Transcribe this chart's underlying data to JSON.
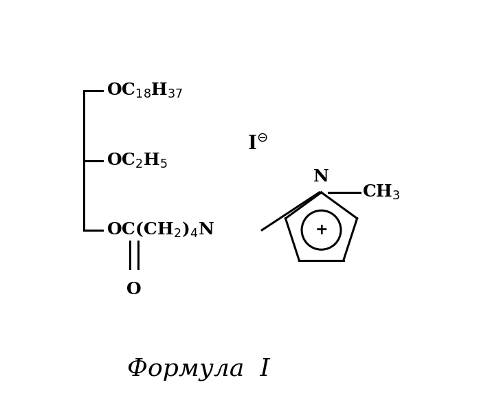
{
  "title": "Формула  I",
  "title_fontsize": 26,
  "background_color": "#ffffff",
  "line_color": "#000000",
  "line_width": 2.2,
  "font_size_main": 18,
  "fig_width": 6.97,
  "fig_height": 5.98,
  "dpi": 100,
  "xlim": [
    0,
    10
  ],
  "ylim": [
    0,
    10
  ]
}
